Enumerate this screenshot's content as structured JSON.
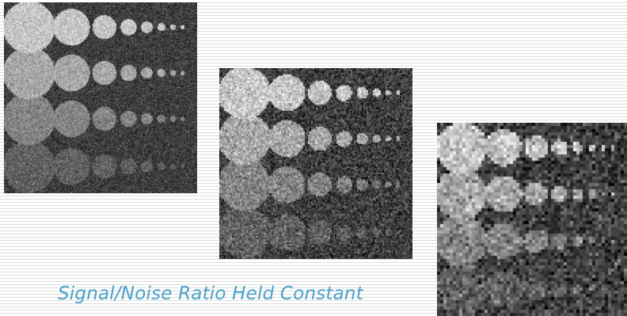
{
  "caption": "Signal/Noise Ratio Held Constant",
  "colors": {
    "caption": "#4aa2c8",
    "background_lines": "#dcdcdc",
    "phantom_background": "#3c3c3c"
  },
  "panels": [
    {
      "name": "phantom-fine",
      "noise_grain": "fine"
    },
    {
      "name": "phantom-medium",
      "noise_grain": "medium"
    },
    {
      "name": "phantom-coarse",
      "noise_grain": "coarse"
    }
  ]
}
